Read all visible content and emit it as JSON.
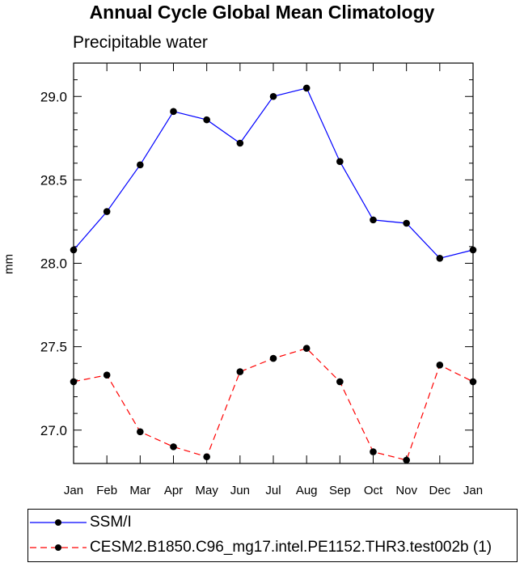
{
  "title": "Annual Cycle Global Mean Climatology",
  "subtitle": "Precipitable water",
  "chart_data": {
    "type": "line",
    "title": "Annual Cycle Global Mean Climatology",
    "subtitle": "Precipitable water",
    "xlabel": "",
    "ylabel": "mm",
    "categories": [
      "Jan",
      "Feb",
      "Mar",
      "Apr",
      "May",
      "Jun",
      "Jul",
      "Aug",
      "Sep",
      "Oct",
      "Nov",
      "Dec",
      "Jan"
    ],
    "ylim": [
      26.8,
      29.2
    ],
    "yticks": [
      "27.0",
      "27.5",
      "28.0",
      "28.5",
      "29.0"
    ],
    "legend_position": "bottom",
    "series": [
      {
        "name": "SSM/I",
        "color": "#0000ff",
        "dash": "solid",
        "values": [
          28.08,
          28.31,
          28.59,
          28.91,
          28.86,
          28.72,
          29.0,
          29.05,
          28.61,
          28.26,
          28.24,
          28.03,
          28.08
        ]
      },
      {
        "name": "CESM2.B1850.C96_mg17.intel.PE1152.THR3.test002b (1)",
        "color": "#ff0000",
        "dash": "dashed",
        "values": [
          27.29,
          27.33,
          26.99,
          26.9,
          26.84,
          27.35,
          27.43,
          27.49,
          27.29,
          26.87,
          26.82,
          27.39,
          27.29
        ]
      }
    ]
  }
}
